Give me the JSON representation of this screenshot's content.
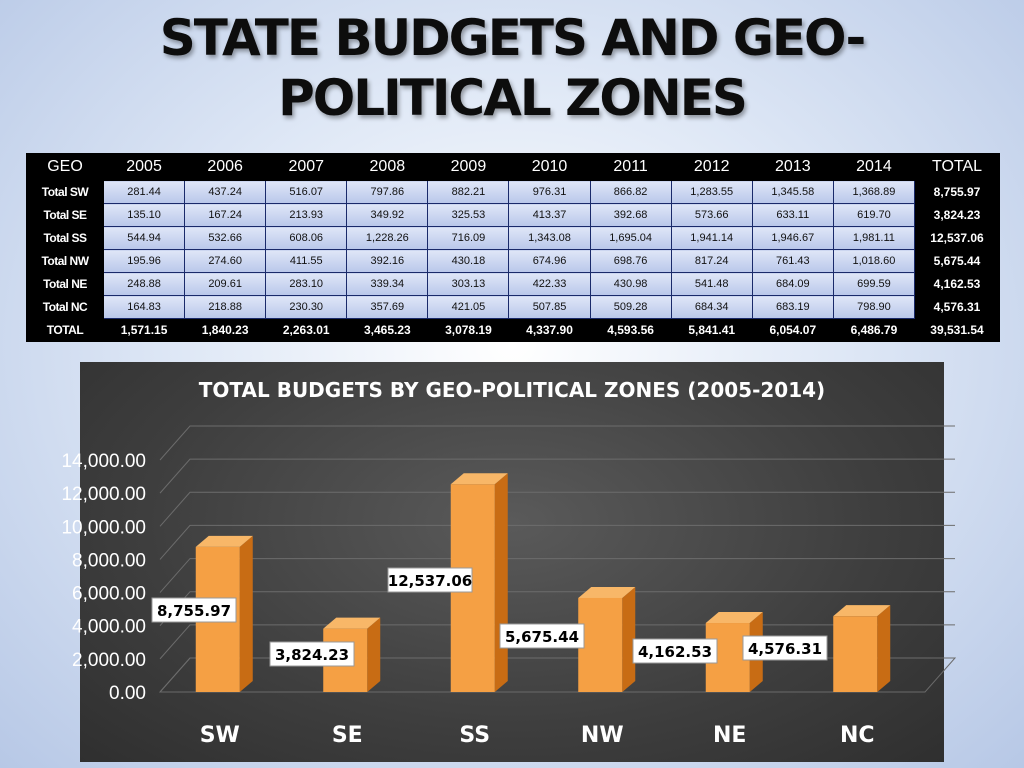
{
  "slide_title_line1": "STATE BUDGETS AND GEO-",
  "slide_title_line2": "POLITICAL ZONES",
  "table": {
    "headers": [
      "GEO",
      "2005",
      "2006",
      "2007",
      "2008",
      "2009",
      "2010",
      "2011",
      "2012",
      "2013",
      "2014",
      "TOTAL"
    ],
    "rows": [
      [
        "Total SW",
        "281.44",
        "437.24",
        "516.07",
        "797.86",
        "882.21",
        "976.31",
        "866.82",
        "1,283.55",
        "1,345.58",
        "1,368.89",
        "8,755.97"
      ],
      [
        "Total SE",
        "135.10",
        "167.24",
        "213.93",
        "349.92",
        "325.53",
        "413.37",
        "392.68",
        "573.66",
        "633.11",
        "619.70",
        "3,824.23"
      ],
      [
        "Total SS",
        "544.94",
        "532.66",
        "608.06",
        "1,228.26",
        "716.09",
        "1,343.08",
        "1,695.04",
        "1,941.14",
        "1,946.67",
        "1,981.11",
        "12,537.06"
      ],
      [
        "Total NW",
        "195.96",
        "274.60",
        "411.55",
        "392.16",
        "430.18",
        "674.96",
        "698.76",
        "817.24",
        "761.43",
        "1,018.60",
        "5,675.44"
      ],
      [
        "Total NE",
        "248.88",
        "209.61",
        "283.10",
        "339.34",
        "303.13",
        "422.33",
        "430.98",
        "541.48",
        "684.09",
        "699.59",
        "4,162.53"
      ],
      [
        "Total NC",
        "164.83",
        "218.88",
        "230.30",
        "357.69",
        "421.05",
        "507.85",
        "509.28",
        "684.34",
        "683.19",
        "798.90",
        "4,576.31"
      ],
      [
        "TOTAL",
        "1,571.15",
        "1,840.23",
        "2,263.01",
        "3,465.23",
        "3,078.19",
        "4,337.90",
        "4,593.56",
        "5,841.41",
        "6,054.07",
        "6,486.79",
        "39,531.54"
      ]
    ]
  },
  "colors": {
    "bar_front": "#f5a044",
    "bar_side": "#c86c14",
    "bar_top": "#f8b768",
    "chart_bg": "#454545",
    "text": "#ffffff"
  },
  "chart_data": {
    "type": "bar",
    "title": "TOTAL BUDGETS BY GEO-POLITICAL ZONES (2005-2014)",
    "categories": [
      "SW",
      "SE",
      "SS",
      "NW",
      "NE",
      "NC"
    ],
    "values": [
      8755.97,
      3824.23,
      12537.06,
      5675.44,
      4162.53,
      4576.31
    ],
    "data_labels": [
      "8,755.97",
      "3,824.23",
      "12,537.06",
      "5,675.44",
      "4,162.53",
      "4,576.31"
    ],
    "ylim": [
      0,
      14000
    ],
    "yticks": [
      0,
      2000,
      4000,
      6000,
      8000,
      10000,
      12000,
      14000
    ],
    "ytick_labels": [
      "0.00",
      "2,000.00",
      "4,000.00",
      "6,000.00",
      "8,000.00",
      "10,000.00",
      "12,000.00",
      "14,000.00"
    ],
    "grid": true,
    "style": "3d-columns"
  }
}
